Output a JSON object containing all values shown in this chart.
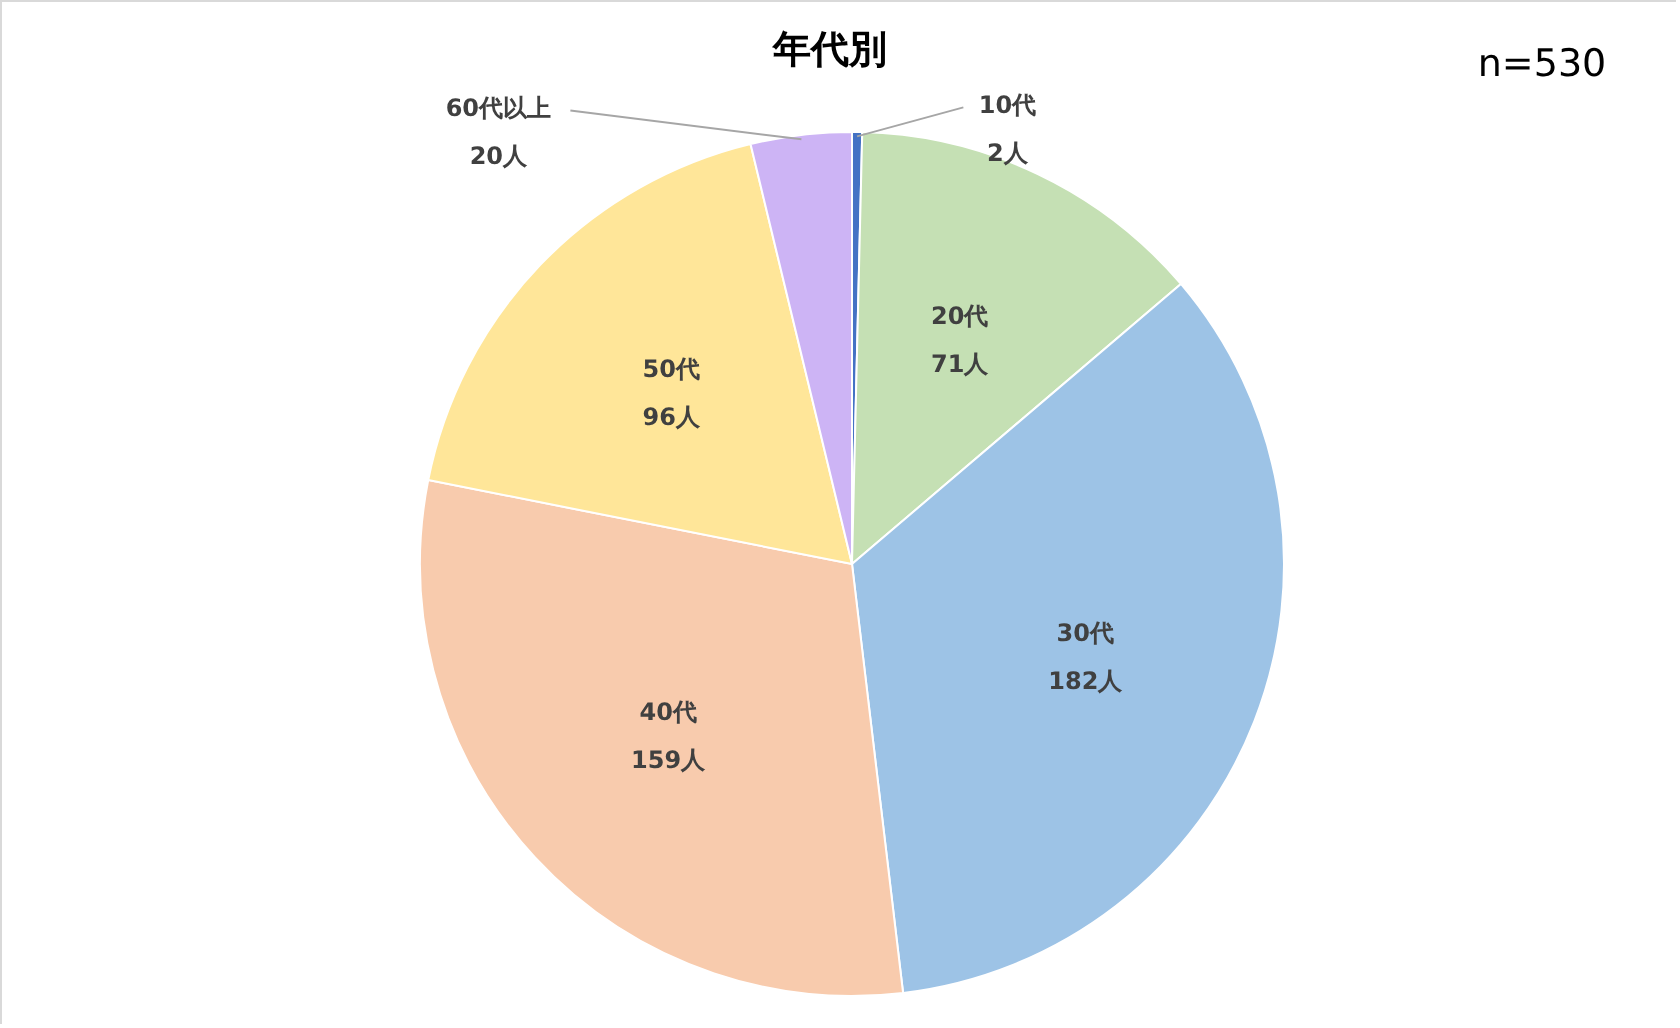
{
  "chart_data": {
    "type": "pie",
    "title": "年代別",
    "annotations": [
      "n=530"
    ],
    "categories": [
      "10代",
      "20代",
      "30代",
      "40代",
      "50代",
      "60代以上"
    ],
    "values": [
      2,
      71,
      182,
      159,
      96,
      20
    ],
    "value_labels": [
      "2人",
      "71人",
      "182人",
      "159人",
      "96人",
      "20人"
    ],
    "colors": [
      "#4472c4",
      "#c5e0b4",
      "#9dc3e6",
      "#f8cbad",
      "#ffe699",
      "#cdb4f5"
    ],
    "legend": false
  }
}
